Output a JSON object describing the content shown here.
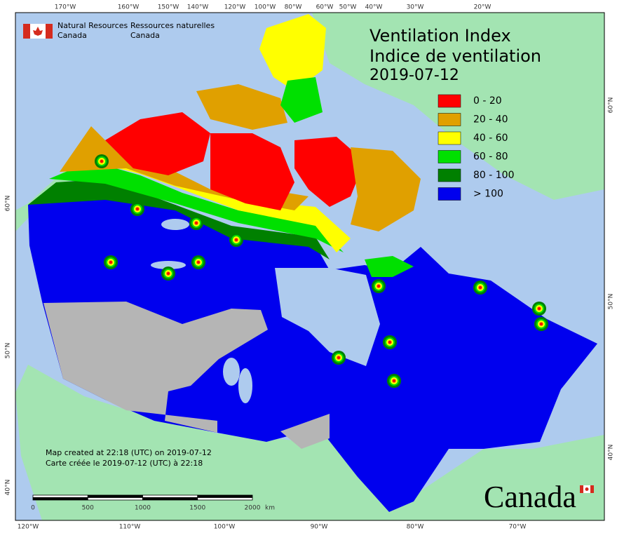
{
  "header": {
    "org_en": [
      "Natural Resources",
      "Canada"
    ],
    "org_fr": [
      "Ressources naturelles",
      "Canada"
    ]
  },
  "title": [
    "Ventilation Index",
    "Indice de ventilation",
    "2019-07-12"
  ],
  "legend": [
    {
      "label": "0 - 20",
      "color": "#ff0000"
    },
    {
      "label": "20 - 40",
      "color": "#e0a000"
    },
    {
      "label": "40 - 60",
      "color": "#ffff00"
    },
    {
      "label": "60 - 80",
      "color": "#00e000"
    },
    {
      "label": "80 - 100",
      "color": "#008000"
    },
    {
      "label": "> 100",
      "color": "#0000ee"
    }
  ],
  "graticule": {
    "top": [
      "170°W",
      "160°W",
      "150°W",
      "140°W",
      "120°W",
      "100°W",
      "80°W",
      "60°W",
      "50°W",
      "40°W",
      "30°W",
      "20°W"
    ],
    "bottom": [
      "120°W",
      "110°W",
      "100°W",
      "90°W",
      "80°W",
      "70°W"
    ],
    "left": [
      "60°N",
      "50°N",
      "40°N"
    ],
    "right": [
      "60°N",
      "50°N",
      "40°N"
    ]
  },
  "scale_bar": {
    "labels": [
      "0",
      "500",
      "1000",
      "1500",
      "2000"
    ],
    "unit": "km"
  },
  "footer": [
    "Map created at 22:18 (UTC) on 2019-07-12",
    "Carte créée le 2019-07-12 (UTC) à 22:18"
  ],
  "wordmark": "Canada"
}
